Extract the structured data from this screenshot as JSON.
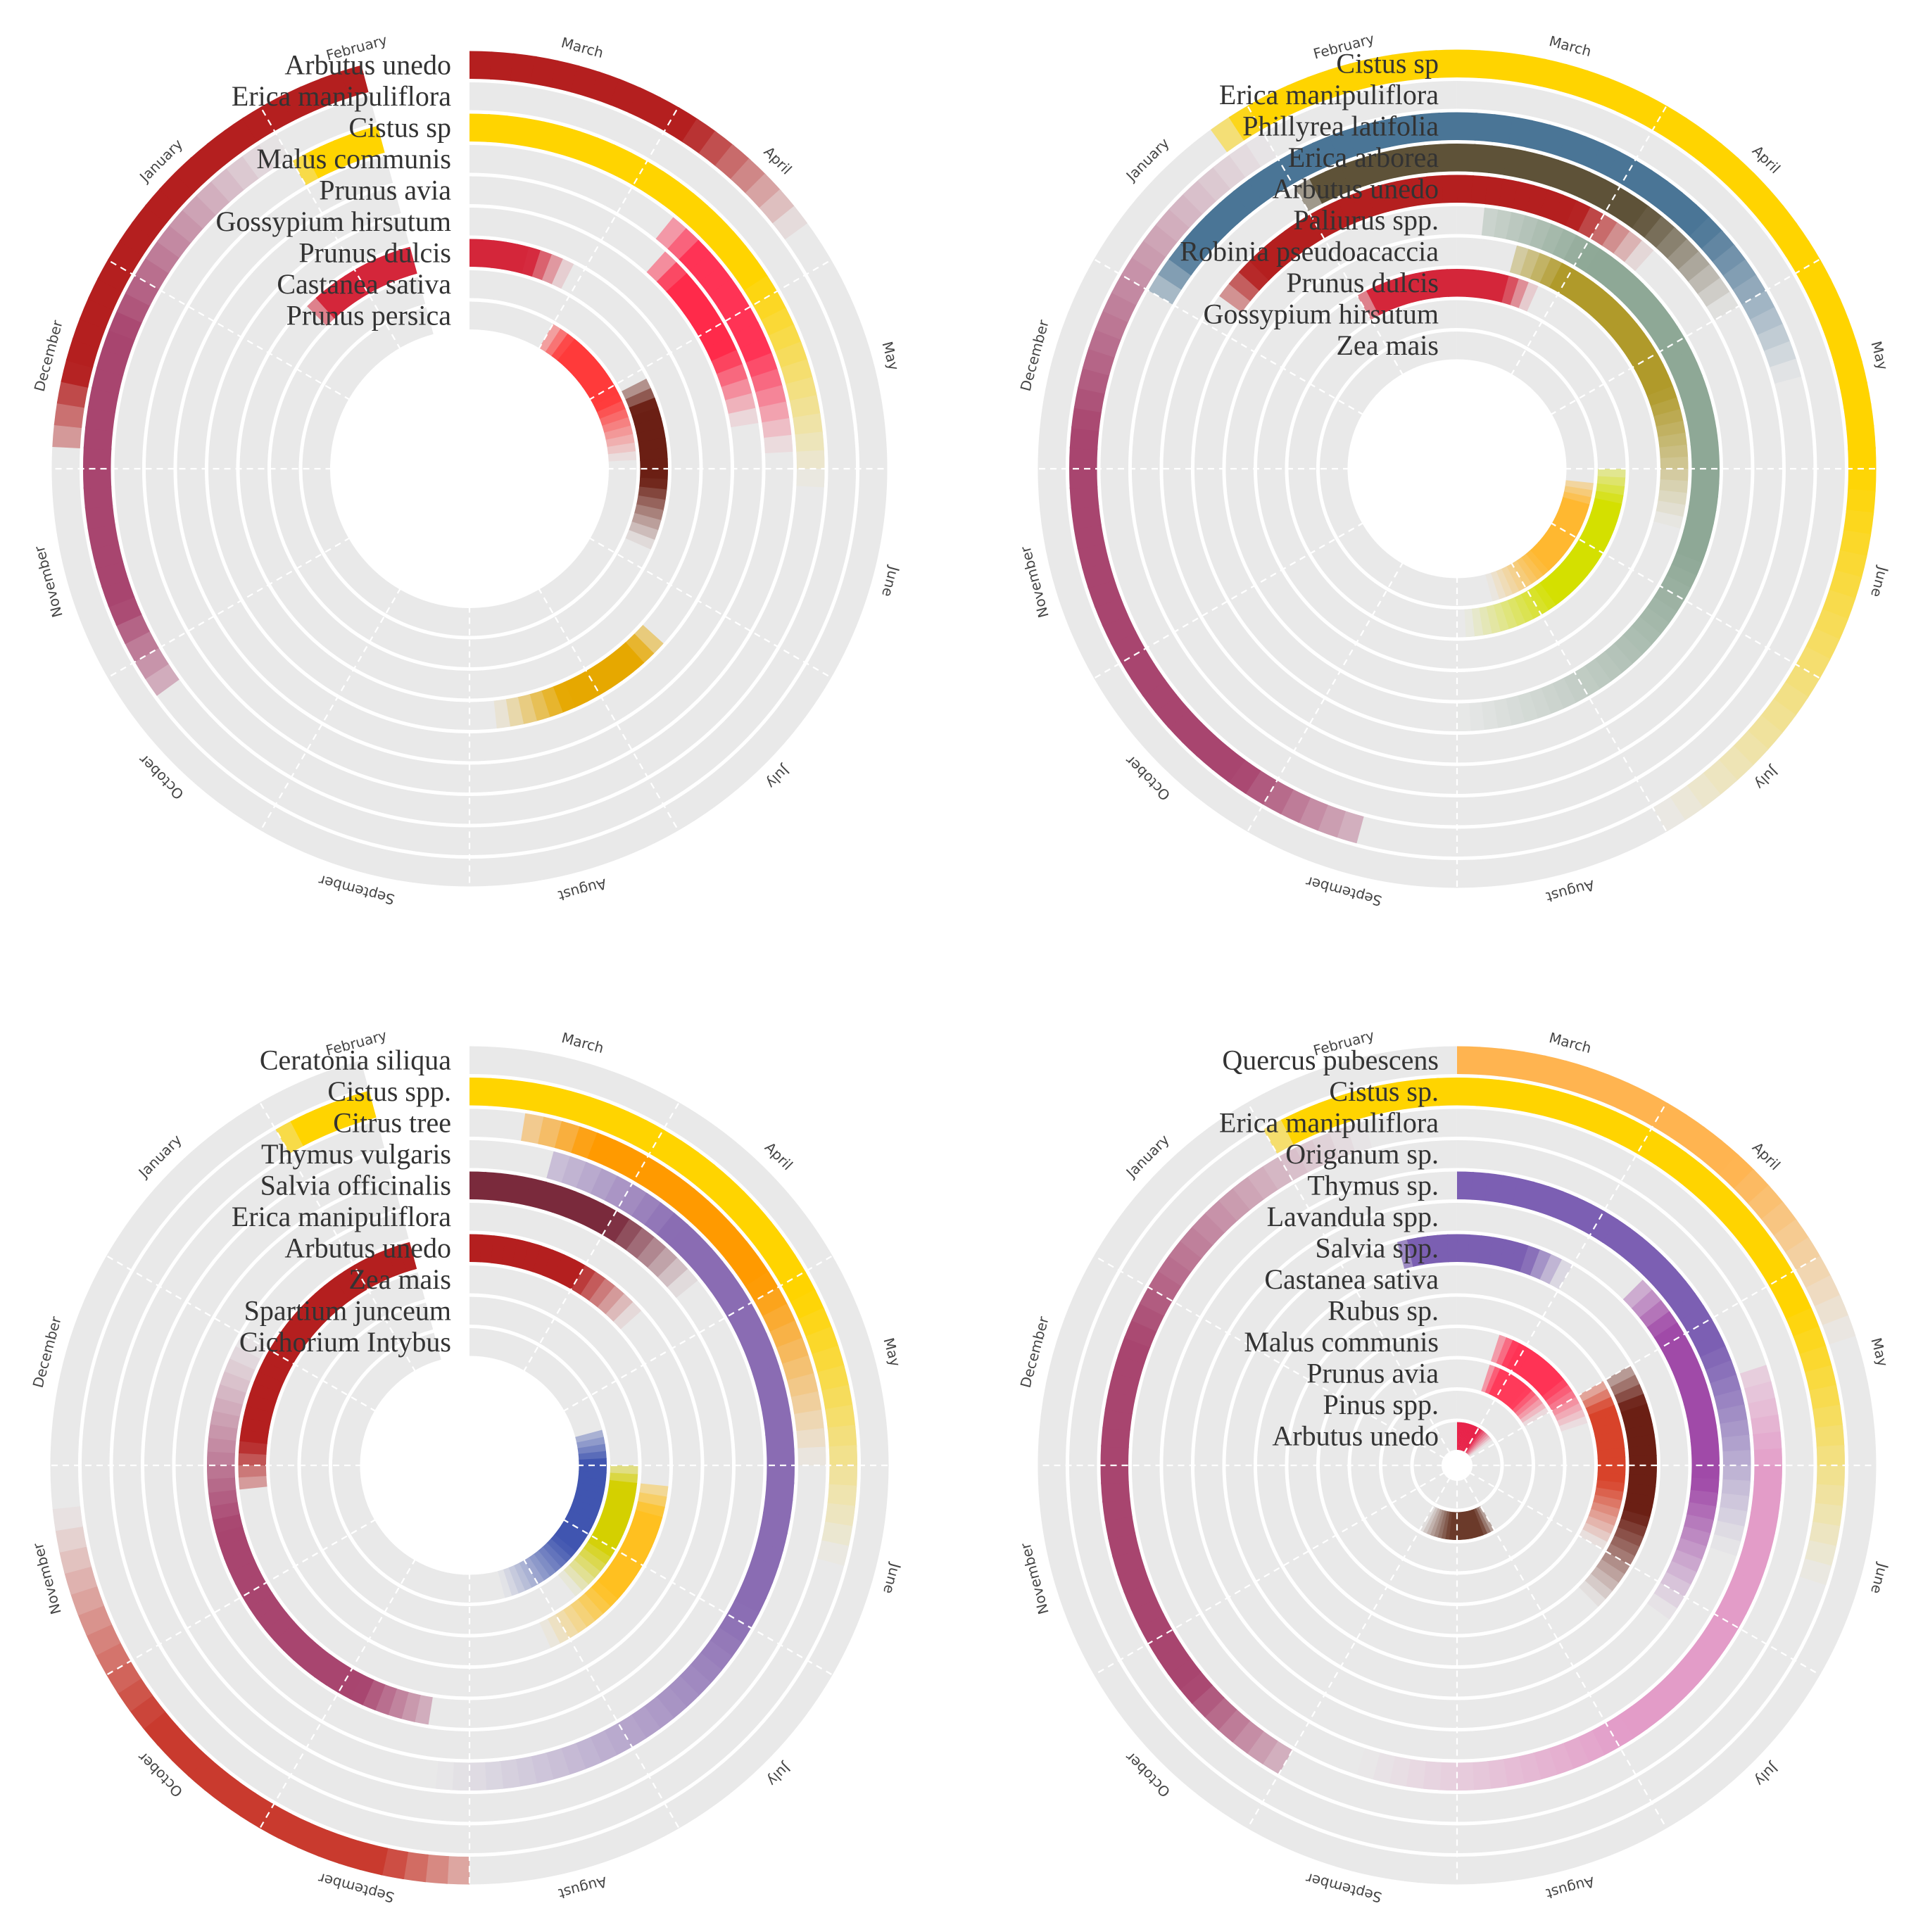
{
  "colors": {
    "track": "#e9e9e9",
    "separator": "#ffffff"
  },
  "months": [
    "March",
    "April",
    "May",
    "June",
    "July",
    "August",
    "September",
    "October",
    "November",
    "December",
    "January",
    "February"
  ],
  "chart_data": [
    {
      "type": "radial-phenology",
      "title": "",
      "start_month": "March",
      "months_shown": 11.5,
      "species": [
        {
          "name": "Arbutus unedo",
          "color": "#b41f1f",
          "spans": [
            {
              "start": 0.0,
              "end": 1.8
            },
            {
              "start": 9.1,
              "end": 11.5
            }
          ]
        },
        {
          "name": "Erica manipuliflora",
          "color": "#a8456f",
          "spans": [
            {
              "start": 7.8,
              "end": 11.0
            }
          ]
        },
        {
          "name": "Cistus sp",
          "color": "#ffd400",
          "spans": [
            {
              "start": 0.0,
              "end": 3.1
            },
            {
              "start": 11.0,
              "end": 11.5
            }
          ]
        },
        {
          "name": "Malus communis",
          "color": "#ff3355",
          "spans": [
            {
              "start": 1.3,
              "end": 2.9
            }
          ]
        },
        {
          "name": "Prunus avia",
          "color": "#ff2a4a",
          "spans": [
            {
              "start": 1.4,
              "end": 2.7
            }
          ]
        },
        {
          "name": "Gossypium hirsutum",
          "color": "#e6a800",
          "spans": [
            {
              "start": 4.4,
              "end": 5.8
            }
          ]
        },
        {
          "name": "Prunus dulcis",
          "color": "#d4263a",
          "spans": [
            {
              "start": 0.0,
              "end": 0.9
            },
            {
              "start": 10.5,
              "end": 11.5
            }
          ]
        },
        {
          "name": "Castanea sativa",
          "color": "#6b1f14",
          "spans": [
            {
              "start": 2.1,
              "end": 3.8
            }
          ]
        },
        {
          "name": "Prunus persica",
          "color": "#ff3a3a",
          "spans": [
            {
              "start": 1.0,
              "end": 2.9
            }
          ]
        }
      ]
    },
    {
      "type": "radial-phenology",
      "title": "",
      "start_month": "March",
      "months_shown": 12.0,
      "species": [
        {
          "name": "Cistus sp",
          "color": "#ffd400",
          "spans": [
            {
              "start": 0.0,
              "end": 5.0
            },
            {
              "start": 10.8,
              "end": 12.0
            }
          ]
        },
        {
          "name": "Erica manipuliflora",
          "color": "#a8456f",
          "spans": [
            {
              "start": 6.5,
              "end": 11.0
            }
          ]
        },
        {
          "name": "Phillyrea latifolia",
          "color": "#4a7596",
          "spans": [
            {
              "start": 0.0,
              "end": 2.5
            },
            {
              "start": 10.0,
              "end": 12.0
            }
          ]
        },
        {
          "name": "Erica arborea",
          "color": "#5e5238",
          "spans": [
            {
              "start": 0.0,
              "end": 2.0
            },
            {
              "start": 11.0,
              "end": 12.0
            }
          ]
        },
        {
          "name": "Arbutus unedo",
          "color": "#b41f1f",
          "spans": [
            {
              "start": 0.0,
              "end": 1.4
            },
            {
              "start": 10.2,
              "end": 12.0
            }
          ]
        },
        {
          "name": "Paliurus spp.",
          "color": "#8ea896",
          "spans": [
            {
              "start": 0.2,
              "end": 6.0
            }
          ]
        },
        {
          "name": "Robinia pseudoacaccia",
          "color": "#b09a2a",
          "spans": [
            {
              "start": 0.5,
              "end": 3.5
            }
          ]
        },
        {
          "name": "Prunus dulcis",
          "color": "#d4263a",
          "spans": [
            {
              "start": 0.0,
              "end": 0.8
            },
            {
              "start": 11.0,
              "end": 12.0
            }
          ]
        },
        {
          "name": "Gossypium hirsutum",
          "color": "#d4e000",
          "spans": [
            {
              "start": 3.0,
              "end": 5.9
            }
          ]
        },
        {
          "name": "Zea mais",
          "color": "#ffb830",
          "spans": [
            {
              "start": 3.2,
              "end": 5.5
            }
          ]
        }
      ]
    },
    {
      "type": "radial-phenology",
      "title": "",
      "start_month": "March",
      "months_shown": 11.5,
      "species": [
        {
          "name": "Ceratonia siliqua",
          "color": "#c93a2e",
          "spans": [
            {
              "start": 6.0,
              "end": 8.8
            }
          ]
        },
        {
          "name": "Cistus  spp.",
          "color": "#ffd400",
          "spans": [
            {
              "start": 0.0,
              "end": 3.5
            },
            {
              "start": 11.0,
              "end": 11.5
            }
          ]
        },
        {
          "name": "Citrus tree",
          "color": "#ff9a00",
          "spans": [
            {
              "start": 0.3,
              "end": 3.0
            }
          ]
        },
        {
          "name": "Thymus vulgaris",
          "color": "#8a6cb3",
          "spans": [
            {
              "start": 0.5,
              "end": 6.2
            }
          ]
        },
        {
          "name": "Salvia officinalis",
          "color": "#7a2a3c",
          "spans": [
            {
              "start": 0.0,
              "end": 1.7
            }
          ]
        },
        {
          "name": "Erica manipuliflora",
          "color": "#a8456f",
          "spans": [
            {
              "start": 6.3,
              "end": 10.0
            }
          ]
        },
        {
          "name": "Arbutus unedo",
          "color": "#b41f1f",
          "spans": [
            {
              "start": 0.0,
              "end": 1.6
            },
            {
              "start": 8.8,
              "end": 11.5
            }
          ]
        },
        {
          "name": "Zea mais",
          "color": "#ffc020",
          "spans": [
            {
              "start": 3.2,
              "end": 5.2
            }
          ]
        },
        {
          "name": "Spartium junceum",
          "color": "#d4d000",
          "spans": [
            {
              "start": 3.0,
              "end": 4.7
            }
          ]
        },
        {
          "name": "Cichorium Intybus",
          "color": "#4055b0",
          "spans": [
            {
              "start": 2.5,
              "end": 5.5
            }
          ]
        }
      ]
    },
    {
      "type": "radial-phenology",
      "title": "",
      "start_month": "March",
      "months_shown": 12.0,
      "species": [
        {
          "name": "Quercus pubescens",
          "color": "#ffb450",
          "spans": [
            {
              "start": 0.0,
              "end": 2.4
            }
          ]
        },
        {
          "name": "Cistus sp.",
          "color": "#ffd400",
          "spans": [
            {
              "start": 0.0,
              "end": 3.6
            },
            {
              "start": 11.0,
              "end": 12.0
            }
          ]
        },
        {
          "name": "Erica manipuliflora",
          "color": "#a8456f",
          "spans": [
            {
              "start": 7.0,
              "end": 11.5
            }
          ]
        },
        {
          "name": "Origanum sp.",
          "color": "#e39cc8",
          "spans": [
            {
              "start": 2.4,
              "end": 6.6
            }
          ]
        },
        {
          "name": "Thymus sp.",
          "color": "#7c5fb3",
          "spans": [
            {
              "start": 0.0,
              "end": 3.6
            }
          ]
        },
        {
          "name": "Lavandula spp.",
          "color": "#a04aa8",
          "spans": [
            {
              "start": 1.5,
              "end": 4.2
            }
          ]
        },
        {
          "name": "Salvia spp.",
          "color": "#7b5fb2",
          "spans": [
            {
              "start": 0.0,
              "end": 1.0
            },
            {
              "start": 11.5,
              "end": 12.0
            }
          ]
        },
        {
          "name": "Castanea sativa",
          "color": "#6b1f14",
          "spans": [
            {
              "start": 2.0,
              "end": 4.5
            }
          ]
        },
        {
          "name": "Rubus sp.",
          "color": "#d8432a",
          "spans": [
            {
              "start": 2.0,
              "end": 4.0
            }
          ]
        },
        {
          "name": "Malus communis",
          "color": "#ff3355",
          "spans": [
            {
              "start": 0.6,
              "end": 2.4
            }
          ]
        },
        {
          "name": "Prunus avia",
          "color": "#ff3a5a",
          "spans": [
            {
              "start": 0.6,
              "end": 2.0
            }
          ]
        },
        {
          "name": "Pinus spp.",
          "color": "#6b3a2a",
          "spans": [
            {
              "start": 5.0,
              "end": 7.0
            }
          ]
        },
        {
          "name": "Arbutus unedo",
          "color": "#e8234a",
          "spans": [
            {
              "start": 0.0,
              "end": 1.8
            }
          ]
        }
      ]
    }
  ]
}
